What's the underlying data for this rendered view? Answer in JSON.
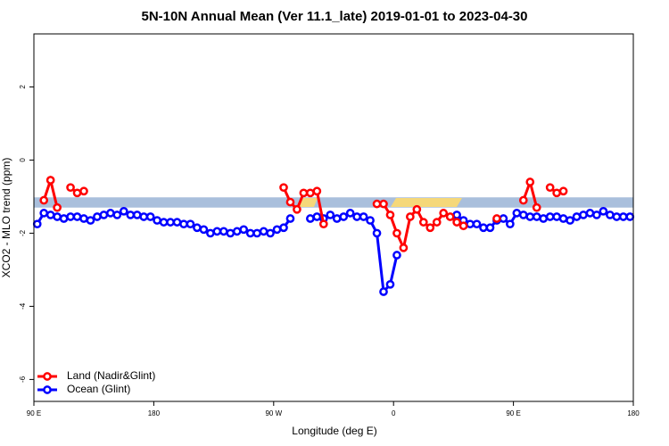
{
  "chart_data": {
    "type": "line",
    "title": "5N-10N Annual Mean (Ver 11.1_late)   2019-01-01 to 2023-04-30",
    "x_label": "Longitude (deg E)",
    "y_label": "XCO2 - MLO trend (ppm)",
    "x": [
      92.5,
      97.5,
      102.5,
      107.5,
      112.5,
      117.5,
      122.5,
      127.5,
      132.5,
      137.5,
      142.5,
      147.5,
      152.5,
      157.5,
      162.5,
      167.5,
      172.5,
      177.5,
      182.5,
      187.5,
      192.5,
      197.5,
      202.5,
      207.5,
      212.5,
      217.5,
      222.5,
      227.5,
      232.5,
      237.5,
      242.5,
      247.5,
      252.5,
      257.5,
      262.5,
      267.5,
      272.5,
      277.5,
      282.5,
      287.5,
      292.5,
      297.5,
      302.5,
      307.5,
      312.5,
      317.5,
      322.5,
      327.5,
      332.5,
      337.5,
      342.5,
      347.5,
      352.5,
      357.5,
      362.5,
      367.5,
      372.5,
      377.5,
      382.5,
      387.5,
      392.5,
      397.5,
      402.5,
      407.5,
      412.5,
      417.5,
      422.5,
      427.5,
      432.5,
      437.5,
      442.5,
      447.5,
      452.5,
      457.5,
      462.5,
      467.5,
      472.5,
      477.5,
      482.5,
      487.5,
      492.5,
      497.5,
      502.5,
      507.5,
      512.5,
      517.5,
      522.5,
      527.5,
      532.5,
      537.5
    ],
    "series": [
      {
        "name": "Ocean (Glint)",
        "color": "#0000ff",
        "values": [
          -1.75,
          -1.45,
          -1.5,
          -1.55,
          -1.6,
          -1.55,
          -1.55,
          -1.6,
          -1.65,
          -1.55,
          -1.5,
          -1.45,
          -1.5,
          -1.4,
          -1.5,
          -1.5,
          -1.55,
          -1.55,
          -1.65,
          -1.7,
          -1.7,
          -1.7,
          -1.75,
          -1.75,
          -1.85,
          -1.9,
          -2.0,
          -1.95,
          -1.95,
          -2.0,
          -1.95,
          -1.9,
          -2.0,
          -2.0,
          -1.95,
          -2.0,
          -1.9,
          -1.85,
          -1.6,
          null,
          null,
          -1.6,
          -1.55,
          -1.6,
          -1.5,
          -1.6,
          -1.55,
          -1.45,
          -1.55,
          -1.55,
          -1.65,
          -2.0,
          -3.6,
          -3.4,
          -2.6,
          null,
          null,
          null,
          null,
          null,
          null,
          null,
          null,
          -1.5,
          -1.65,
          -1.75,
          -1.75,
          -1.85,
          -1.85,
          -1.65,
          -1.6,
          -1.75,
          -1.45,
          -1.5,
          -1.55,
          -1.55,
          -1.6,
          -1.55,
          -1.55,
          -1.6,
          -1.65,
          -1.55,
          -1.5,
          -1.45,
          -1.5,
          -1.4,
          -1.5,
          -1.55,
          -1.55,
          -1.55
        ]
      },
      {
        "name": "Land (Nadir&Glint)",
        "color": "#ff0000",
        "values": [
          null,
          -1.1,
          -0.55,
          -1.3,
          null,
          -0.75,
          -0.9,
          -0.85,
          null,
          null,
          null,
          null,
          null,
          null,
          null,
          null,
          null,
          null,
          null,
          null,
          null,
          null,
          null,
          null,
          null,
          null,
          null,
          null,
          null,
          null,
          null,
          null,
          null,
          null,
          null,
          null,
          null,
          -0.75,
          -1.15,
          -1.35,
          -0.9,
          -0.9,
          -0.85,
          -1.75,
          null,
          null,
          null,
          null,
          null,
          null,
          null,
          -1.2,
          -1.2,
          -1.5,
          -2.0,
          -2.4,
          -1.55,
          -1.35,
          -1.7,
          -1.85,
          -1.7,
          -1.45,
          -1.55,
          -1.7,
          -1.8,
          null,
          null,
          null,
          null,
          -1.6,
          null,
          null,
          null,
          -1.1,
          -0.6,
          -1.3,
          null,
          -0.75,
          -0.9,
          -0.85,
          null,
          null,
          null,
          null,
          null,
          null,
          null,
          null,
          null,
          null
        ]
      }
    ],
    "legend_order": [
      1,
      0
    ],
    "band": {
      "range": [
        -1.3,
        -1.02
      ],
      "color": "#a9bfdc"
    },
    "xlim": [
      90,
      540
    ],
    "xticks": [
      {
        "value": 90,
        "label": "90 E"
      },
      180,
      {
        "value": 270,
        "label": "90 W"
      },
      {
        "value": 360,
        "label": "0"
      },
      {
        "value": 450,
        "label": "90 E"
      },
      {
        "value": 540,
        "label": "180"
      }
    ],
    "ylim": [
      -6.6,
      3.45
    ],
    "yticks": [
      -6,
      -4,
      -2,
      0,
      2
    ],
    "legend": "bottom-left"
  }
}
